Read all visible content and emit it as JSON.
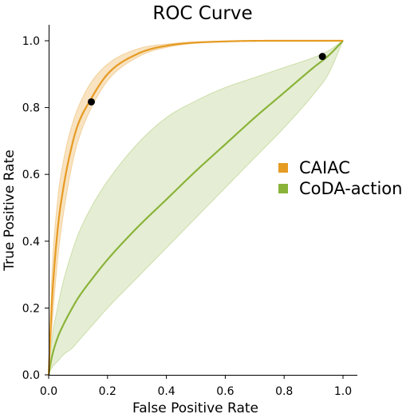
{
  "chart_data": {
    "type": "line",
    "title": "ROC Curve",
    "xlabel": "False Positive Rate",
    "ylabel": "True Positive Rate",
    "xlim": [
      0,
      1
    ],
    "ylim": [
      0,
      1
    ],
    "xticks": [
      "0.0",
      "0.2",
      "0.4",
      "0.6",
      "0.8",
      "1.0"
    ],
    "yticks": [
      "0.0",
      "0.2",
      "0.4",
      "0.6",
      "0.8",
      "1.0"
    ],
    "grid": false,
    "legend_position": "right",
    "series": [
      {
        "name": "CAIAC",
        "color": "#e69b23",
        "x": [
          0,
          0.01,
          0.03,
          0.05,
          0.08,
          0.1,
          0.14,
          0.2,
          0.3,
          0.4,
          0.6,
          0.8,
          1.0
        ],
        "y": [
          0,
          0.2,
          0.43,
          0.56,
          0.69,
          0.75,
          0.82,
          0.9,
          0.96,
          0.985,
          0.998,
          1.0,
          1.0
        ],
        "lower": [
          0,
          0.13,
          0.34,
          0.48,
          0.63,
          0.7,
          0.79,
          0.88,
          0.95,
          0.98,
          0.997,
          1.0,
          1.0
        ],
        "upper": [
          0,
          0.28,
          0.52,
          0.64,
          0.75,
          0.8,
          0.87,
          0.93,
          0.975,
          0.99,
          0.999,
          1.0,
          1.0
        ],
        "marker": {
          "x": 0.145,
          "y": 0.817
        }
      },
      {
        "name": "CoDA-action",
        "color": "#8ab33a",
        "x": [
          0,
          0.01,
          0.03,
          0.05,
          0.08,
          0.1,
          0.15,
          0.2,
          0.3,
          0.4,
          0.5,
          0.6,
          0.7,
          0.8,
          0.9,
          0.95,
          1.0
        ],
        "y": [
          0,
          0.05,
          0.11,
          0.15,
          0.2,
          0.23,
          0.29,
          0.345,
          0.44,
          0.525,
          0.61,
          0.69,
          0.77,
          0.845,
          0.92,
          0.955,
          1.0
        ],
        "lower": [
          0,
          0.02,
          0.04,
          0.06,
          0.08,
          0.1,
          0.15,
          0.2,
          0.29,
          0.38,
          0.47,
          0.56,
          0.65,
          0.74,
          0.84,
          0.9,
          1.0
        ],
        "upper": [
          0,
          0.1,
          0.2,
          0.28,
          0.37,
          0.42,
          0.51,
          0.58,
          0.69,
          0.77,
          0.82,
          0.86,
          0.89,
          0.92,
          0.95,
          0.97,
          1.0
        ],
        "marker": {
          "x": 0.93,
          "y": 0.953
        }
      }
    ]
  }
}
